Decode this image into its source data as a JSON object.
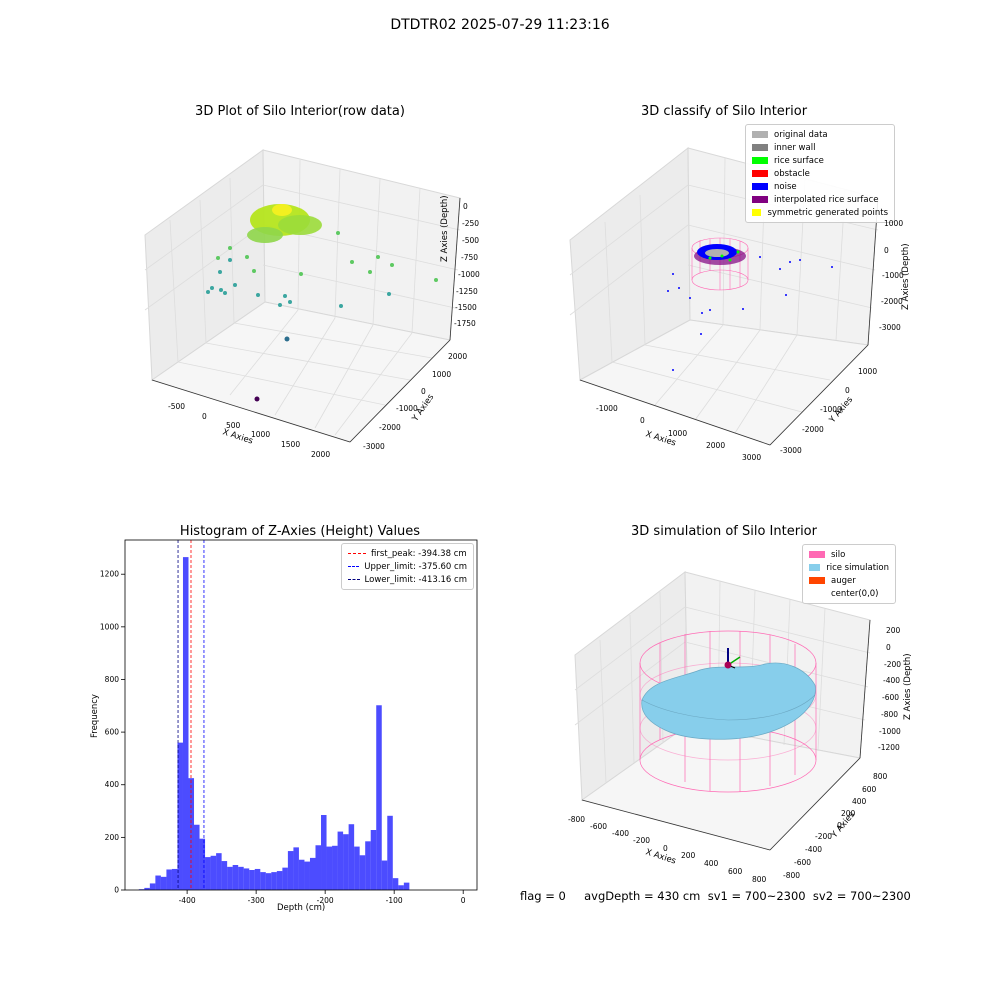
{
  "suptitle": "DTDTR02 2025-07-29 11:23:16",
  "panels": {
    "raw": {
      "title": "3D Plot of Silo Interior(row data)",
      "xlabel": "X Axies",
      "ylabel": "Y Axies",
      "zlabel": "Z Axies (Depth)",
      "xticks": [
        "-500",
        "0",
        "500",
        "1000",
        "1500",
        "2000"
      ],
      "yticks": [
        "2000",
        "1000",
        "0",
        "-1000",
        "-2000",
        "-3000"
      ],
      "zticks": [
        "0",
        "-250",
        "-500",
        "-750",
        "-1000",
        "-1250",
        "-1500",
        "-1750"
      ]
    },
    "classify": {
      "title": "3D classify of Silo Interior",
      "xlabel": "X Axies",
      "ylabel": "Y Axies",
      "zlabel": "Z Axies (Depth)",
      "xticks": [
        "-1000",
        "0",
        "1000",
        "2000",
        "3000"
      ],
      "yticks": [
        "1000",
        "0",
        "-1000",
        "-2000",
        "-3000"
      ],
      "zticks": [
        "1000",
        "0",
        "-1000",
        "-2000",
        "-3000"
      ],
      "legend": [
        {
          "label": "original data",
          "color": "#b0b0b0"
        },
        {
          "label": "inner wall",
          "color": "#808080"
        },
        {
          "label": "rice surface",
          "color": "#00ff00"
        },
        {
          "label": "obstacle",
          "color": "#ff0000"
        },
        {
          "label": "noise",
          "color": "#0000ff"
        },
        {
          "label": "interpolated rice surface",
          "color": "#800080"
        },
        {
          "label": "symmetric generated points",
          "color": "#ffff00"
        }
      ]
    },
    "simulation": {
      "title": "3D simulation of Silo Interior",
      "xlabel": "X Axies",
      "ylabel": "Y Axies",
      "zlabel": "Z Axies (Depth)",
      "xticks": [
        "-800",
        "-600",
        "-400",
        "-200",
        "0",
        "200",
        "400",
        "600",
        "800"
      ],
      "yticks": [
        "800",
        "600",
        "400",
        "200",
        "0",
        "-200",
        "-400",
        "-600",
        "-800"
      ],
      "zticks": [
        "200",
        "0",
        "-200",
        "-400",
        "-600",
        "-800",
        "-1000",
        "-1200"
      ],
      "legend": [
        {
          "label": "silo",
          "color": "#ff69b4"
        },
        {
          "label": "rice simulation",
          "color": "#87ceeb"
        },
        {
          "label": "auger",
          "color": "#ff4500"
        },
        {
          "label": "center(0,0)",
          "color": ""
        }
      ]
    }
  },
  "status_text": "flag = 0     avgDepth = 430 cm  sv1 = 700~2300  sv2 = 700~2300",
  "chart_data": [
    {
      "type": "bar",
      "title": "Histogram of Z-Axies (Height) Values",
      "xlabel": "Depth (cm)",
      "ylabel": "Frequency",
      "xlim": [
        -490,
        20
      ],
      "ylim": [
        0,
        1330
      ],
      "xticks": [
        -400,
        -300,
        -200,
        -100,
        0
      ],
      "yticks": [
        0,
        200,
        400,
        600,
        800,
        1000,
        1200
      ],
      "bar_color": "#0000ff",
      "bin_width": 8,
      "bins": [
        {
          "x": -470,
          "y": 3
        },
        {
          "x": -462,
          "y": 8
        },
        {
          "x": -454,
          "y": 25
        },
        {
          "x": -446,
          "y": 55
        },
        {
          "x": -438,
          "y": 50
        },
        {
          "x": -430,
          "y": 78
        },
        {
          "x": -422,
          "y": 80
        },
        {
          "x": -414,
          "y": 560
        },
        {
          "x": -406,
          "y": 1265
        },
        {
          "x": -398,
          "y": 425
        },
        {
          "x": -390,
          "y": 248
        },
        {
          "x": -382,
          "y": 195
        },
        {
          "x": -374,
          "y": 125
        },
        {
          "x": -366,
          "y": 130
        },
        {
          "x": -358,
          "y": 140
        },
        {
          "x": -350,
          "y": 110
        },
        {
          "x": -342,
          "y": 88
        },
        {
          "x": -334,
          "y": 95
        },
        {
          "x": -326,
          "y": 88
        },
        {
          "x": -318,
          "y": 82
        },
        {
          "x": -310,
          "y": 76
        },
        {
          "x": -302,
          "y": 80
        },
        {
          "x": -294,
          "y": 68
        },
        {
          "x": -286,
          "y": 64
        },
        {
          "x": -278,
          "y": 68
        },
        {
          "x": -270,
          "y": 72
        },
        {
          "x": -262,
          "y": 85
        },
        {
          "x": -254,
          "y": 148
        },
        {
          "x": -246,
          "y": 162
        },
        {
          "x": -238,
          "y": 115
        },
        {
          "x": -230,
          "y": 108
        },
        {
          "x": -222,
          "y": 122
        },
        {
          "x": -214,
          "y": 170
        },
        {
          "x": -206,
          "y": 285
        },
        {
          "x": -198,
          "y": 165
        },
        {
          "x": -190,
          "y": 168
        },
        {
          "x": -182,
          "y": 222
        },
        {
          "x": -174,
          "y": 212
        },
        {
          "x": -166,
          "y": 250
        },
        {
          "x": -158,
          "y": 165
        },
        {
          "x": -150,
          "y": 132
        },
        {
          "x": -142,
          "y": 185
        },
        {
          "x": -134,
          "y": 228
        },
        {
          "x": -126,
          "y": 702
        },
        {
          "x": -118,
          "y": 112
        },
        {
          "x": -110,
          "y": 282
        },
        {
          "x": -102,
          "y": 45
        },
        {
          "x": -94,
          "y": 18
        },
        {
          "x": -86,
          "y": 28
        }
      ],
      "reference_lines": [
        {
          "label": "first_peak: -394.38 cm",
          "value": -394.38,
          "color": "#ff0000"
        },
        {
          "label": "Upper_limit: -375.60 cm",
          "value": -375.6,
          "color": "#0000ff"
        },
        {
          "label": "Lower_limit: -413.16 cm",
          "value": -413.16,
          "color": "#000080"
        }
      ]
    }
  ]
}
